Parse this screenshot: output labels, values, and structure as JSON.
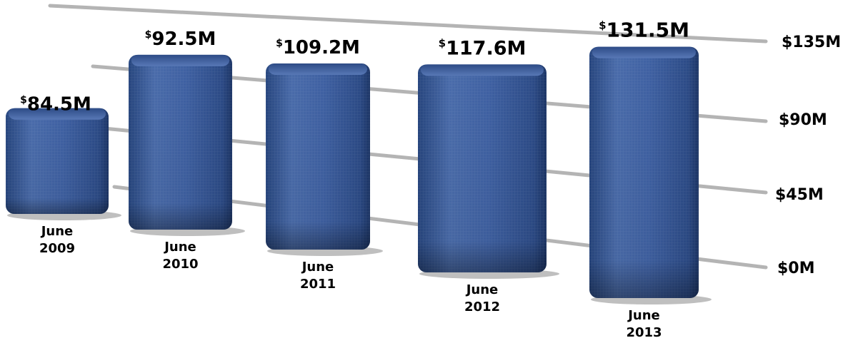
{
  "chart_data": {
    "type": "bar",
    "title": "",
    "xlabel": "",
    "ylabel": "",
    "categories": [
      [
        "June",
        "2009"
      ],
      [
        "June",
        "2010"
      ],
      [
        "June",
        "2011"
      ],
      [
        "June",
        "2012"
      ],
      [
        "June",
        "2013"
      ]
    ],
    "values": [
      84.5,
      92.5,
      109.2,
      117.6,
      131.5
    ],
    "value_labels": [
      {
        "currency": "$",
        "amount": "84.5M"
      },
      {
        "currency": "$",
        "amount": "92.5M"
      },
      {
        "currency": "$",
        "amount": "109.2M"
      },
      {
        "currency": "$",
        "amount": "117.6M"
      },
      {
        "currency": "$",
        "amount": "131.5M"
      }
    ],
    "y_ticks": [
      {
        "value": 0,
        "label": "$0M"
      },
      {
        "value": 45,
        "label": "$45M"
      },
      {
        "value": 90,
        "label": "$90M"
      },
      {
        "value": 135,
        "label": "$135M"
      }
    ],
    "ylim": [
      0,
      135
    ],
    "grid": true,
    "legend": "none",
    "colors": {
      "bar": "#3d5f9e",
      "bar_dark": "#1f3a6e",
      "bar_light": "#6f8fcc",
      "grid": "#b4b4b4"
    }
  }
}
